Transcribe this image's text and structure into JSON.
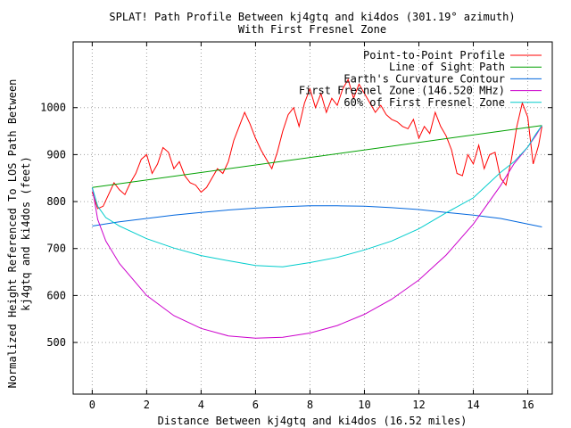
{
  "chart_data": {
    "type": "line",
    "title": "SPLAT! Path Profile Between kj4gtq and ki4dos (301.19° azimuth)",
    "subtitle": "With First Fresnel Zone",
    "xlabel": "Distance Between kj4gtq and ki4dos (16.52 miles)",
    "ylabel": "Normalized Height Referenced To LOS Path Between",
    "ylabel2": "kj4gtq and ki4dos (feet)",
    "xlim": [
      -0.7,
      16.9
    ],
    "ylim": [
      390,
      1140
    ],
    "x_ticks": [
      "0",
      "2",
      "4",
      "6",
      "8",
      "10",
      "12",
      "14",
      "16"
    ],
    "y_ticks": [
      "500",
      "600",
      "700",
      "800",
      "900",
      "1000"
    ],
    "x_tick_values": [
      0,
      2,
      4,
      6,
      8,
      10,
      12,
      14,
      16
    ],
    "y_tick_values": [
      500,
      600,
      700,
      800,
      900,
      1000
    ],
    "grid": true,
    "legend_position": "top-right",
    "series": [
      {
        "name": "Point-to-Point Profile",
        "color": "#ff0000",
        "x": [
          0,
          0.2,
          0.4,
          0.6,
          0.8,
          1.0,
          1.2,
          1.4,
          1.6,
          1.8,
          2.0,
          2.2,
          2.4,
          2.6,
          2.8,
          3.0,
          3.2,
          3.4,
          3.6,
          3.8,
          4.0,
          4.2,
          4.4,
          4.6,
          4.8,
          5.0,
          5.2,
          5.4,
          5.6,
          5.8,
          6.0,
          6.2,
          6.4,
          6.6,
          6.8,
          7.0,
          7.2,
          7.4,
          7.6,
          7.8,
          8.0,
          8.2,
          8.4,
          8.6,
          8.8,
          9.0,
          9.2,
          9.4,
          9.6,
          9.8,
          10.0,
          10.2,
          10.4,
          10.6,
          10.8,
          11.0,
          11.2,
          11.4,
          11.6,
          11.8,
          12.0,
          12.2,
          12.4,
          12.6,
          12.8,
          13.0,
          13.2,
          13.4,
          13.6,
          13.8,
          14.0,
          14.2,
          14.4,
          14.6,
          14.8,
          15.0,
          15.2,
          15.4,
          15.6,
          15.8,
          16.0,
          16.2,
          16.4,
          16.52
        ],
        "y": [
          820,
          785,
          790,
          815,
          840,
          825,
          815,
          840,
          860,
          890,
          900,
          860,
          880,
          915,
          905,
          870,
          885,
          855,
          840,
          835,
          820,
          830,
          850,
          870,
          860,
          885,
          930,
          960,
          990,
          965,
          935,
          910,
          890,
          870,
          905,
          950,
          985,
          1000,
          960,
          1010,
          1040,
          1000,
          1030,
          990,
          1020,
          1005,
          1040,
          1060,
          1020,
          1050,
          1030,
          1010,
          990,
          1005,
          985,
          975,
          970,
          960,
          955,
          975,
          935,
          960,
          945,
          990,
          960,
          940,
          910,
          860,
          855,
          900,
          880,
          920,
          870,
          900,
          905,
          850,
          835,
          890,
          960,
          1010,
          980,
          880,
          920,
          960
        ]
      },
      {
        "name": "Line of Sight Path",
        "color": "#00a000",
        "x": [
          0,
          16.52
        ],
        "y": [
          830,
          962
        ]
      },
      {
        "name": "Earth's Curvature Contour",
        "color": "#0066dd",
        "x": [
          0,
          1,
          2,
          3,
          4,
          5,
          6,
          7,
          8,
          9,
          10,
          11,
          12,
          13,
          14,
          15,
          16,
          16.52
        ],
        "y": [
          748,
          757,
          764,
          771,
          777,
          782,
          786,
          789,
          791,
          791,
          790,
          787,
          783,
          777,
          771,
          764,
          752,
          746
        ]
      },
      {
        "name": "First Fresnel Zone (146.520 MHz)",
        "color": "#cc00cc",
        "x": [
          0,
          0.2,
          0.5,
          1,
          2,
          3,
          4,
          5,
          6,
          7,
          8,
          9,
          10,
          11,
          12,
          13,
          14,
          15,
          15.5,
          16,
          16.3,
          16.52
        ],
        "y": [
          830,
          762,
          716,
          668,
          600,
          557,
          530,
          514,
          509,
          511,
          520,
          536,
          560,
          592,
          633,
          686,
          752,
          834,
          881,
          916,
          941,
          962
        ]
      },
      {
        "name": "60% of First Fresnel Zone",
        "color": "#00cccc",
        "x": [
          0,
          0.2,
          0.5,
          1,
          2,
          3,
          4,
          5,
          6,
          7,
          8,
          9,
          10,
          11,
          12,
          13,
          14,
          15,
          15.5,
          16,
          16.3,
          16.52
        ],
        "y": [
          830,
          790,
          766,
          748,
          721,
          701,
          685,
          674,
          664,
          661,
          670,
          681,
          697,
          716,
          742,
          776,
          808,
          862,
          885,
          916,
          944,
          962
        ]
      }
    ]
  }
}
